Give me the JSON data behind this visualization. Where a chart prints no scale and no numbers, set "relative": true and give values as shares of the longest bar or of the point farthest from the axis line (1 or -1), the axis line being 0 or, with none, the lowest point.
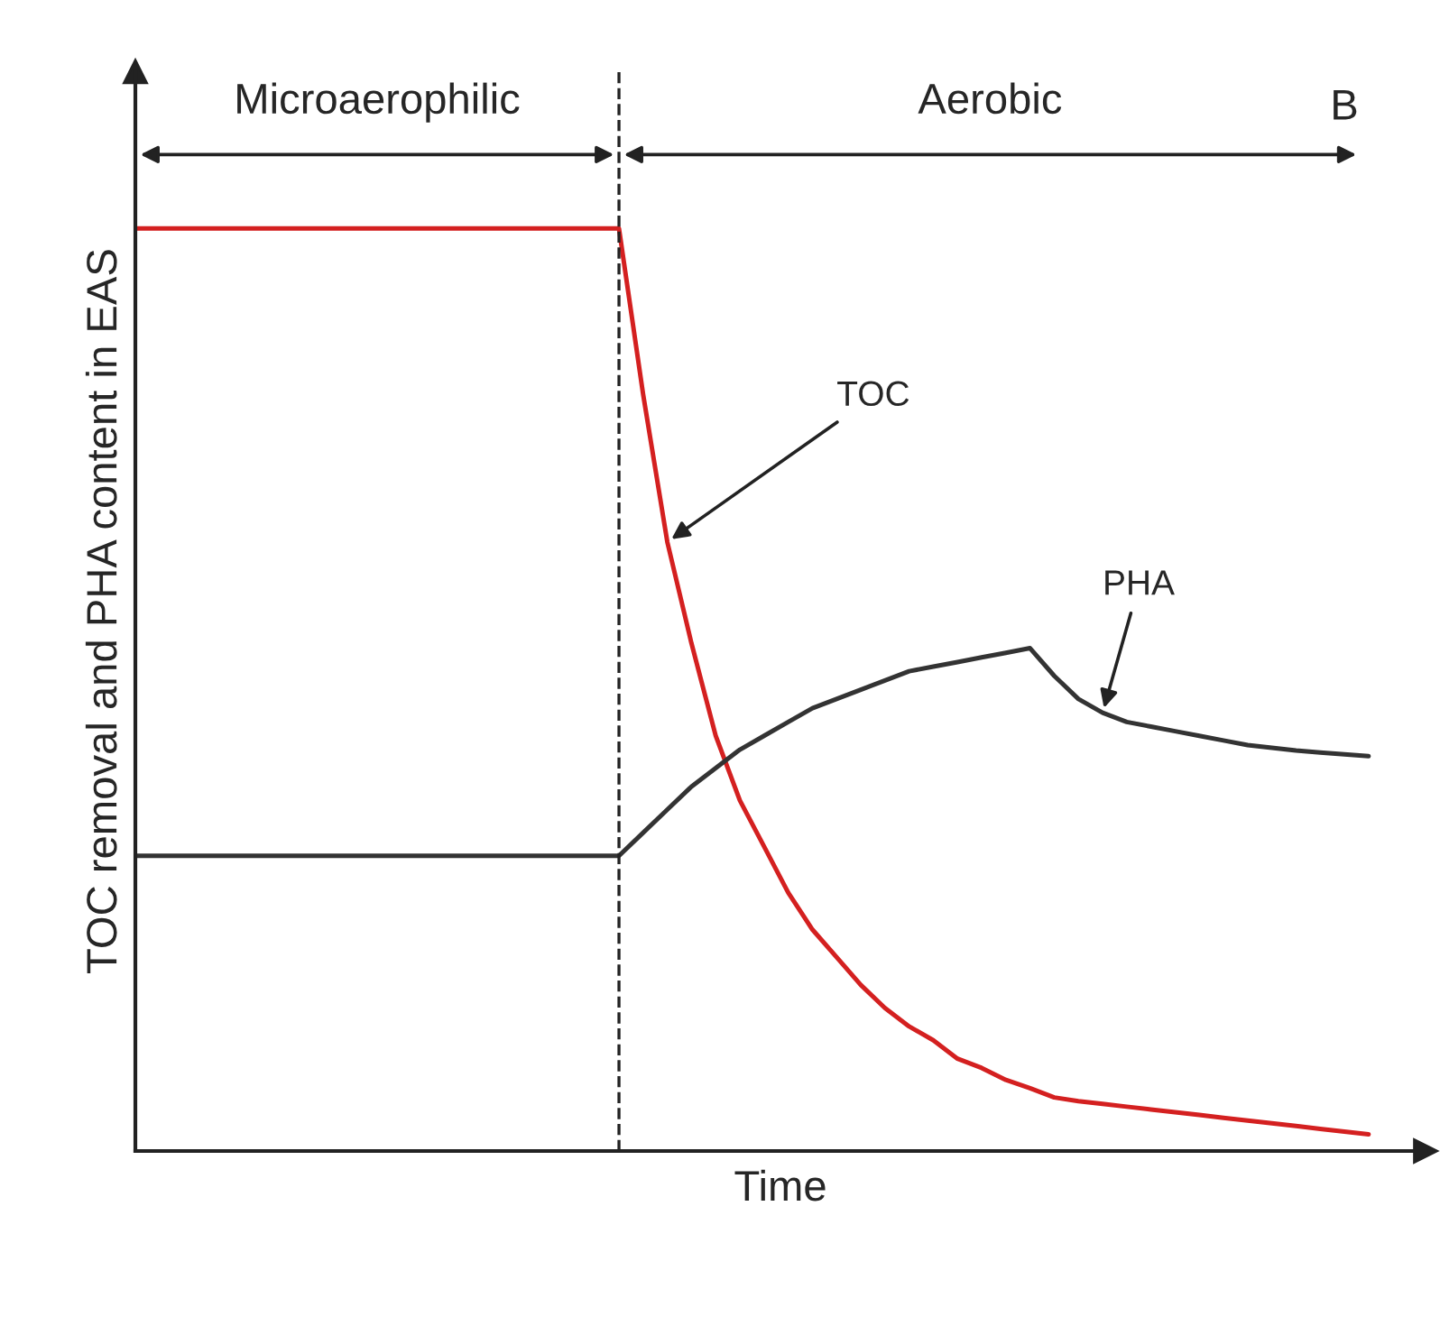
{
  "chart_data": {
    "type": "line",
    "xlabel": "Time",
    "ylabel": "TOC removal and PHA content in EAS",
    "relative": true,
    "categories": [
      null,
      null,
      null,
      null,
      null,
      null,
      null,
      null,
      null,
      null,
      null,
      null,
      null,
      null,
      null,
      null,
      null,
      null,
      null,
      null,
      null,
      null,
      null,
      null,
      null,
      null,
      null,
      null,
      null,
      null,
      null,
      null,
      null,
      null,
      null,
      null,
      null,
      null,
      null,
      null,
      null,
      null,
      null,
      null,
      null,
      null,
      null,
      null,
      null,
      null,
      null,
      null
    ],
    "series": [
      {
        "color": "#d42020",
        "values": [
          1,
          1,
          1,
          1,
          1,
          1,
          1,
          1,
          1,
          1,
          1,
          1,
          1,
          1,
          1,
          1,
          1,
          1,
          1,
          1,
          1,
          0.82,
          0.66,
          0.55,
          0.45,
          0.38,
          0.33,
          0.28,
          0.24,
          0.21,
          0.18,
          0.155,
          0.135,
          0.12,
          0.1,
          0.09,
          0.077,
          0.068,
          0.058,
          0.054,
          0.051,
          0.048,
          0.045,
          0.042,
          0.039,
          0.036,
          0.033,
          0.03,
          0.027,
          0.024,
          0.021,
          0.018
        ]
      },
      {
        "color": "#333333",
        "values": [
          0.32,
          0.32,
          0.32,
          0.32,
          0.32,
          0.32,
          0.32,
          0.32,
          0.32,
          0.32,
          0.32,
          0.32,
          0.32,
          0.32,
          0.32,
          0.32,
          0.32,
          0.32,
          0.32,
          0.32,
          0.32,
          0.345,
          0.37,
          0.395,
          0.415,
          0.435,
          0.45,
          0.465,
          0.48,
          0.49,
          0.5,
          0.51,
          0.52,
          0.525,
          0.53,
          0.535,
          0.54,
          0.545,
          0.515,
          0.49,
          0.475,
          0.465,
          0.46,
          0.455,
          0.45,
          0.445,
          0.44,
          0.437,
          0.434,
          0.432,
          0.43,
          0.428
        ]
      }
    ],
    "annotations": [
      "B",
      "Microaerophilic",
      "Aerobic",
      "TOC",
      "PHA"
    ],
    "grid": false,
    "legend": false,
    "marker": "none",
    "line_style": "solid"
  }
}
